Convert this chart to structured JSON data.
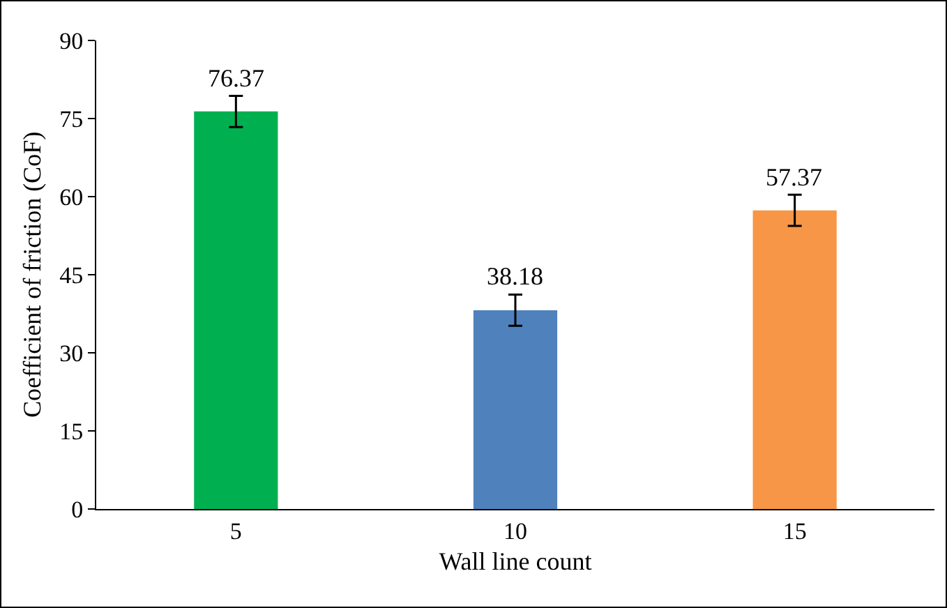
{
  "chart_data": {
    "type": "bar",
    "xlabel": "Wall line count",
    "ylabel": "Coefficient of friction (CoF)",
    "categories": [
      "5",
      "10",
      "15"
    ],
    "values": [
      76.37,
      38.18,
      57.37
    ],
    "colors": [
      "#00b050",
      "#4f81bd",
      "#f79646"
    ],
    "errors": [
      3,
      3,
      3
    ],
    "data_labels": true,
    "ylim": [
      0,
      90
    ],
    "yticks": [
      0,
      15,
      30,
      45,
      60,
      75,
      90
    ],
    "grid": false
  }
}
